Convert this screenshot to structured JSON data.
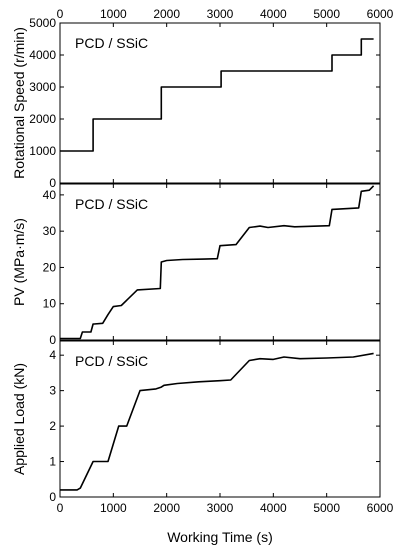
{
  "chart_data": [
    {
      "type": "line",
      "panel_label": "PCD / SSiC",
      "xlabel": "",
      "ylabel": "Rotational Speed (r/min)",
      "xlim": [
        0,
        6000
      ],
      "ylim": [
        0,
        5000
      ],
      "xticks": [
        0,
        1000,
        2000,
        3000,
        4000,
        5000,
        6000
      ],
      "yticks": [
        0,
        1000,
        2000,
        3000,
        4000,
        5000
      ],
      "x_tick_labels": [
        "0",
        "1000",
        "2000",
        "3000",
        "4000",
        "5000",
        "6000"
      ],
      "y_tick_labels": [
        "0",
        "1000",
        "2000",
        "3000",
        "4000",
        "5000"
      ],
      "grid": false,
      "series": [
        {
          "x": [
            0,
            620,
            620,
            1900,
            1900,
            3020,
            3020,
            5100,
            5100,
            5650,
            5650,
            5880
          ],
          "y": [
            1000,
            1000,
            2000,
            2000,
            3000,
            3000,
            3500,
            3500,
            4000,
            4000,
            4500,
            4500
          ]
        }
      ]
    },
    {
      "type": "line",
      "panel_label": "PCD / SSiC",
      "xlabel": "",
      "ylabel": "PV (MPa·m/s)",
      "xlim": [
        0,
        6000
      ],
      "ylim": [
        0,
        43
      ],
      "xticks": [
        0,
        1000,
        2000,
        3000,
        4000,
        5000,
        6000
      ],
      "yticks": [
        0,
        10,
        20,
        30,
        40
      ],
      "y_tick_labels": [
        "0",
        "10",
        "20",
        "30",
        "40"
      ],
      "grid": false,
      "series": [
        {
          "x": [
            0,
            380,
            420,
            580,
            620,
            640,
            800,
            900,
            1000,
            1150,
            1450,
            1880,
            1900,
            2000,
            2300,
            2700,
            2950,
            3000,
            3300,
            3550,
            3750,
            3900,
            4200,
            4400,
            5050,
            5100,
            5600,
            5650,
            5800,
            5880
          ],
          "y": [
            0.4,
            0.4,
            2.2,
            2.2,
            4.4,
            4.4,
            4.6,
            7.0,
            9.2,
            9.5,
            13.8,
            14.2,
            21.5,
            21.9,
            22.2,
            22.3,
            22.4,
            26.0,
            26.3,
            31.0,
            31.4,
            31.0,
            31.5,
            31.2,
            31.5,
            36.0,
            36.4,
            41.0,
            41.3,
            42.5
          ]
        }
      ]
    },
    {
      "type": "line",
      "panel_label": "PCD / SSiC",
      "xlabel": "Working Time (s)",
      "ylabel": "Applied Load (kN)",
      "xlim": [
        0,
        6000
      ],
      "ylim": [
        0,
        4.4
      ],
      "xticks": [
        0,
        1000,
        2000,
        3000,
        4000,
        5000,
        6000
      ],
      "yticks": [
        0,
        1,
        2,
        3,
        4
      ],
      "x_tick_labels": [
        "0",
        "1000",
        "2000",
        "3000",
        "4000",
        "5000",
        "6000"
      ],
      "y_tick_labels": [
        "0",
        "1",
        "2",
        "3",
        "4"
      ],
      "grid": false,
      "series": [
        {
          "x": [
            0,
            320,
            380,
            620,
            660,
            900,
            1100,
            1250,
            1500,
            1800,
            1900,
            1950,
            2200,
            2600,
            3000,
            3200,
            3550,
            3750,
            4000,
            4200,
            4500,
            5000,
            5500,
            5880
          ],
          "y": [
            0.2,
            0.2,
            0.25,
            1.0,
            1.0,
            1.0,
            2.0,
            2.0,
            3.0,
            3.05,
            3.1,
            3.15,
            3.2,
            3.25,
            3.28,
            3.3,
            3.85,
            3.9,
            3.88,
            3.95,
            3.9,
            3.92,
            3.95,
            4.05
          ]
        }
      ]
    }
  ]
}
